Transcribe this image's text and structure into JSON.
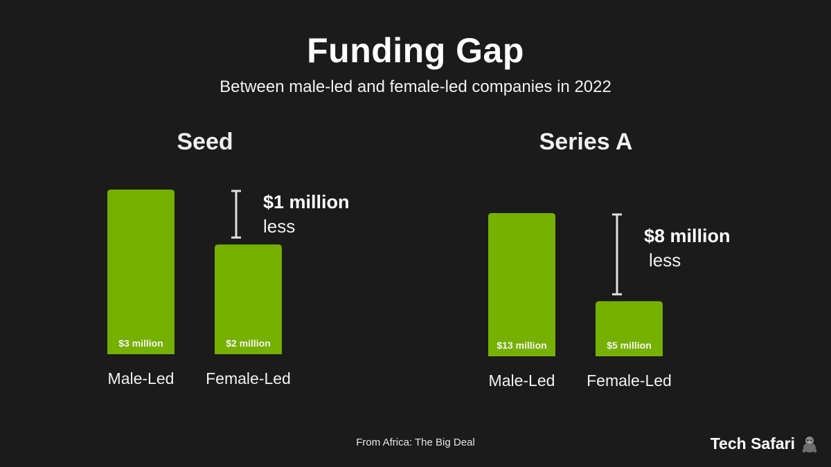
{
  "title": "Funding Gap",
  "subtitle": "Between male-led and female-led companies in 2022",
  "source": "From Africa: The Big Deal",
  "brand": {
    "name": "Tech Safari",
    "logo_icon": "gorilla-icon"
  },
  "colors": {
    "background": "#1b1b1b",
    "bar": "#76b000",
    "text": "#ffffff",
    "gap_marker": "#e0e0e0"
  },
  "chart_data": [
    {
      "type": "bar",
      "title": "Seed",
      "categories": [
        "Male-Led",
        "Female-Led"
      ],
      "values": [
        3,
        2
      ],
      "unit": "million USD",
      "data_labels": [
        "$3 million",
        "$2 million"
      ],
      "annotation": {
        "amount": "$1 million",
        "word": "less"
      }
    },
    {
      "type": "bar",
      "title": "Series A",
      "categories": [
        "Male-Led",
        "Female-Led"
      ],
      "values": [
        13,
        5
      ],
      "unit": "million USD",
      "data_labels": [
        "$13 million",
        "$5 million"
      ],
      "annotation": {
        "amount": "$8 million",
        "word": "less"
      }
    }
  ]
}
